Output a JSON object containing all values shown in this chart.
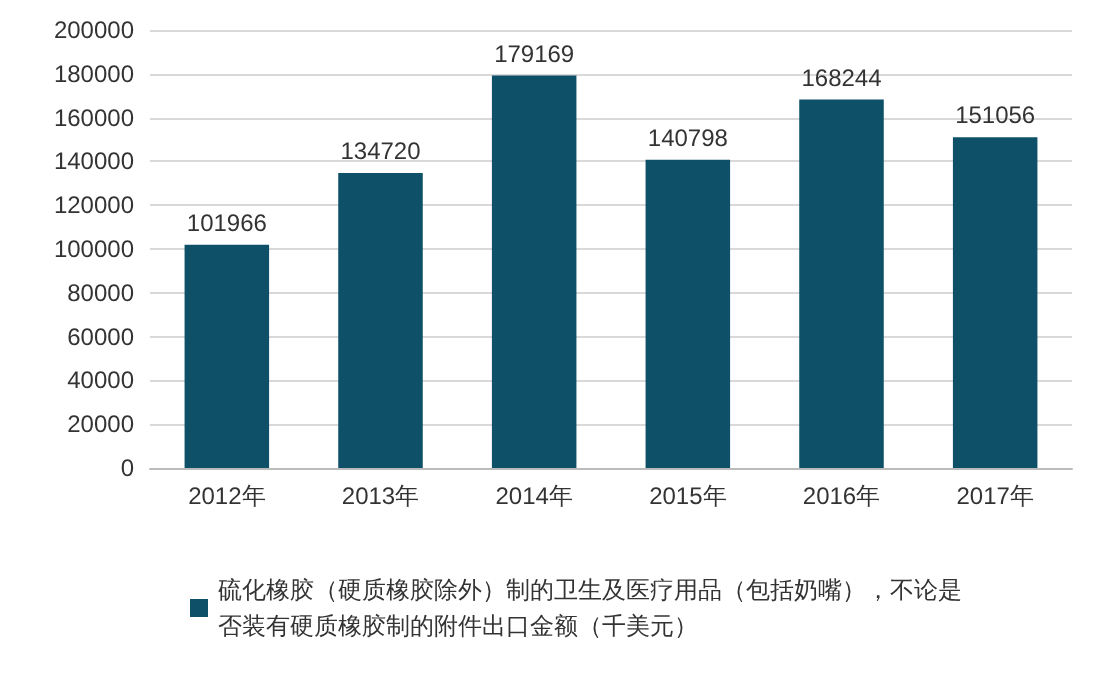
{
  "chart_data": {
    "type": "bar",
    "categories": [
      "2012年",
      "2013年",
      "2014年",
      "2015年",
      "2016年",
      "2017年"
    ],
    "series": [
      {
        "name": "硫化橡胶（硬质橡胶除外）制的卫生及医疗用品（包括奶嘴），不论是否装有硬质橡胶制的附件出口金额（千美元）",
        "color": "#0d5068",
        "values": [
          101966,
          134720,
          179169,
          140798,
          168244,
          151056
        ]
      }
    ],
    "ylim": [
      0,
      200000
    ],
    "yticks": [
      0,
      20000,
      40000,
      60000,
      80000,
      100000,
      120000,
      140000,
      160000,
      180000,
      200000
    ],
    "grid": "y",
    "legend": "bottom",
    "data_labels": true
  }
}
